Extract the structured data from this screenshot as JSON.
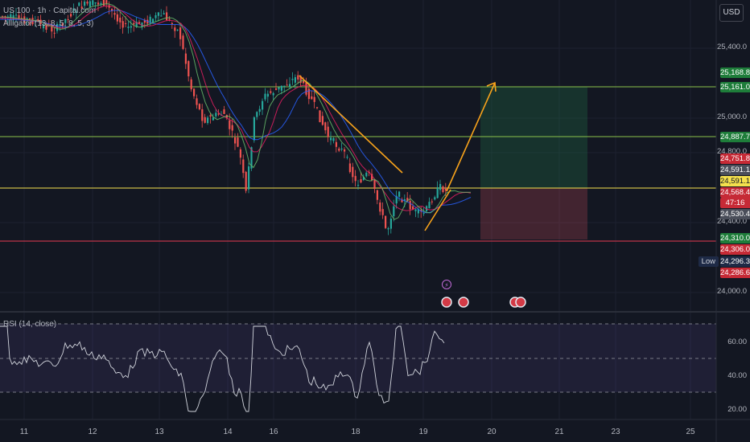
{
  "legend": {
    "title": "US 100 · 1h · Capital.com",
    "alligator": "Alligator (13, 8, 5, 8, 5, 3)"
  },
  "rsi_legend": "RSI (14, close)",
  "currency_button": "USD",
  "low_label": "Low",
  "price_axis_labels": [
    "25,400.0",
    "25,000.0",
    "24,800.0",
    "24,400.0",
    "24,000.0"
  ],
  "price_tags": [
    {
      "text": "25,168.8",
      "color": "#1e7d3a"
    },
    {
      "text": "25,161.0",
      "color": "#1e7d3a"
    },
    {
      "text": "24,887.7",
      "color": "#1e7d3a"
    },
    {
      "text": "24,751.8",
      "color": "#c62a36"
    },
    {
      "text": "24,591.1",
      "color": "#4a4e5a"
    },
    {
      "text": "24,591.1",
      "color": "#f4e04d"
    },
    {
      "text": "24,568.4",
      "color": "#c62a36"
    },
    {
      "text": "47:16",
      "color": "#c62a36"
    },
    {
      "text": "24,530.4",
      "color": "#4a4e5a"
    },
    {
      "text": "24,310.0",
      "color": "#1e7d3a"
    },
    {
      "text": "24,306.0",
      "color": "#c62a36"
    },
    {
      "text": "24,296.3",
      "color": "#1e2a46"
    },
    {
      "text": "24,286.6",
      "color": "#c62a36"
    }
  ],
  "rsi_axis_labels": [
    "60.00",
    "40.00",
    "20.00"
  ],
  "time_axis_labels": [
    "11",
    "12",
    "13",
    "14",
    "16",
    "18",
    "19",
    "20",
    "21",
    "23",
    "25"
  ],
  "chart_data": {
    "type": "line",
    "instrument": "US 100",
    "price_levels": [
      25168.8,
      24887.7,
      24591.1,
      24310.0
    ],
    "current_price": 24568.4,
    "rsi_levels": [
      70,
      50,
      30
    ],
    "colors": {
      "background": "#131722",
      "bull": "#26a69a",
      "bear": "#ef5350",
      "target": "#4caf50",
      "resistance": "#8bc34a",
      "entry": "#f4e04d",
      "stop": "#e53950",
      "projection": "#f7a21b",
      "rsi_line": "#d1d4dc"
    }
  }
}
